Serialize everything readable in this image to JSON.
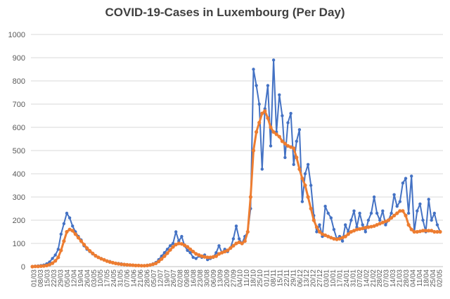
{
  "chart_data": {
    "type": "line",
    "title": "COVID-19-Cases in Luxembourg (Per Day)",
    "xlabel": "",
    "ylabel": "",
    "ylim": [
      0,
      1000
    ],
    "yticks": [
      0,
      100,
      200,
      300,
      400,
      500,
      600,
      700,
      800,
      900,
      1000
    ],
    "grid": true,
    "legend": "none",
    "x_tick_labels": [
      "01/03",
      "08/03",
      "15/03",
      "22/03",
      "29/03",
      "05/04",
      "12/04",
      "19/04",
      "26/04",
      "03/05",
      "10/05",
      "17/05",
      "24/05",
      "31/05",
      "07/06",
      "14/06",
      "21/06",
      "28/06",
      "05/07",
      "12/07",
      "19/07",
      "26/07",
      "02/08",
      "09/08",
      "16/08",
      "23/08",
      "30/08",
      "06/09",
      "13/09",
      "20/09",
      "27/09",
      "04/10",
      "11/10",
      "18/10",
      "25/10",
      "01/11",
      "08/11",
      "15/11",
      "22/11",
      "29/11",
      "06/12",
      "13/12",
      "20/12",
      "27/12",
      "03/01",
      "10/01",
      "17/01",
      "24/01",
      "31/01",
      "07/02",
      "14/02",
      "21/02",
      "28/02",
      "07/03",
      "14/03",
      "21/03",
      "28/03",
      "04/04",
      "11/04",
      "18/04",
      "25/04",
      "02/05"
    ],
    "series": [
      {
        "color": "#4472C4",
        "values": [
          0,
          2,
          3,
          5,
          7,
          12,
          20,
          35,
          50,
          75,
          140,
          185,
          230,
          210,
          175,
          150,
          130,
          115,
          90,
          75,
          65,
          55,
          45,
          40,
          35,
          30,
          25,
          22,
          18,
          15,
          14,
          12,
          10,
          8,
          7,
          6,
          5,
          5,
          4,
          4,
          6,
          8,
          12,
          18,
          30,
          45,
          60,
          75,
          90,
          100,
          150,
          110,
          130,
          90,
          70,
          60,
          40,
          35,
          45,
          40,
          50,
          30,
          35,
          40,
          60,
          90,
          60,
          75,
          65,
          80,
          120,
          175,
          120,
          100,
          130,
          150,
          250,
          850,
          780,
          700,
          420,
          680,
          780,
          520,
          890,
          580,
          740,
          650,
          470,
          620,
          660,
          440,
          540,
          590,
          280,
          400,
          440,
          350,
          220,
          150,
          180,
          130,
          260,
          230,
          210,
          160,
          120,
          130,
          110,
          180,
          150,
          200,
          240,
          170,
          230,
          180,
          150,
          200,
          230,
          300,
          230,
          200,
          240,
          180,
          200,
          230,
          310,
          260,
          280,
          360,
          380,
          230,
          390,
          150,
          240,
          270,
          200,
          150,
          290,
          200,
          230,
          180,
          150
        ]
      },
      {
        "color": "#ED7D31",
        "values": [
          0,
          1,
          1,
          2,
          3,
          5,
          9,
          15,
          25,
          40,
          70,
          110,
          150,
          160,
          155,
          140,
          125,
          110,
          95,
          80,
          68,
          57,
          47,
          40,
          34,
          29,
          24,
          20,
          17,
          14,
          12,
          10,
          9,
          8,
          7,
          6,
          5,
          5,
          4,
          4,
          5,
          7,
          10,
          14,
          22,
          33,
          45,
          58,
          72,
          85,
          95,
          100,
          98,
          92,
          85,
          75,
          65,
          55,
          50,
          45,
          42,
          40,
          40,
          42,
          45,
          55,
          60,
          65,
          70,
          80,
          90,
          100,
          105,
          100,
          110,
          150,
          300,
          500,
          580,
          620,
          660,
          670,
          640,
          600,
          580,
          570,
          560,
          540,
          530,
          520,
          515,
          510,
          470,
          420,
          380,
          350,
          300,
          250,
          200,
          170,
          150,
          140,
          135,
          130,
          125,
          120,
          118,
          120,
          125,
          130,
          140,
          150,
          155,
          160,
          162,
          165,
          168,
          170,
          172,
          175,
          180,
          185,
          190,
          195,
          200,
          210,
          220,
          230,
          240,
          240,
          220,
          180,
          160,
          150,
          150,
          152,
          155,
          155,
          155,
          155,
          150,
          150,
          150
        ]
      }
    ]
  }
}
